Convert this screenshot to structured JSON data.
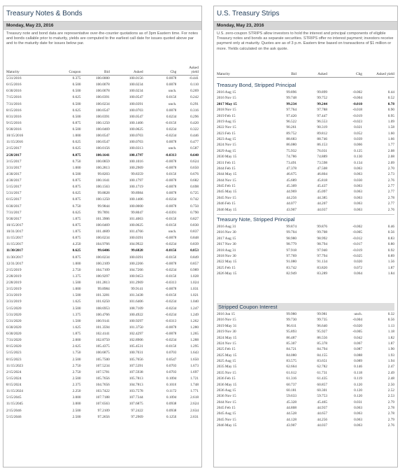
{
  "left": {
    "title": "Treasury Notes & Bonds",
    "date": "Monday, May 23, 2016",
    "description": "Treasury note and bond data are representative over-the-counter quotations as of 3pm Eastern time. For notes and bonds callable prior to maturity, yields are computed to the earliest call date for issues quoted above par and to the maturity date for issues below par.",
    "headers": {
      "maturity": "Maturity",
      "coupon": "Coupon",
      "bid": "Bid",
      "asked": "Asked",
      "chg": "Chg",
      "yield1": "Asked",
      "yield2": "yield"
    },
    "rows": [
      [
        "5/31/2016",
        "0.375",
        "100.0000",
        "100.0156",
        "0.0078",
        "-0.441"
      ],
      [
        "6/15/2016",
        "0.500",
        "100.0078",
        "100.0234",
        "0.0078",
        "0.110"
      ],
      [
        "6/30/2016",
        "0.500",
        "100.0078",
        "100.0234",
        "unch.",
        "0.269"
      ],
      [
        "7/15/2016",
        "0.625",
        "100.0391",
        "100.0547",
        "0.0156",
        "0.242"
      ],
      [
        "7/31/2016",
        "0.500",
        "100.0234",
        "100.0391",
        "unch.",
        "0.291"
      ],
      [
        "8/15/2016",
        "0.625",
        "100.0547",
        "100.0703",
        "0.0078",
        "0.316"
      ],
      [
        "8/31/2016",
        "0.500",
        "100.0391",
        "100.0547",
        "0.0234",
        "0.296"
      ],
      [
        "9/15/2016",
        "0.875",
        "100.1250",
        "100.1406",
        "-0.0156",
        "0.420"
      ],
      [
        "9/30/2016",
        "0.500",
        "100.0469",
        "100.0625",
        "0.0234",
        "0.322"
      ],
      [
        "10/15/2016",
        "1.000",
        "100.0547",
        "100.0703",
        "-0.0234",
        "0.446"
      ],
      [
        "11/15/2016",
        "0.625",
        "100.0547",
        "100.0703",
        "0.0078",
        "0.477"
      ],
      [
        "2/15/2017",
        "0.625",
        "100.0156",
        "100.0313",
        "unch.",
        "0.587"
      ],
      [
        "2/28/2017",
        "0.875",
        "100.1641",
        "100.1797",
        "-0.0313",
        "0.640"
      ],
      [
        "3/15/2017",
        "0.750",
        "100.0859",
        "100.1016",
        "-0.0078",
        "0.624"
      ],
      [
        "3/31/2017",
        "1.000",
        "100.2813",
        "100.2969",
        "-0.0078",
        "0.650"
      ],
      [
        "4/30/2017",
        "0.500",
        "99.8203",
        "99.8359",
        "0.0156",
        "0.676"
      ],
      [
        "4/30/2017",
        "0.875",
        "100.1641",
        "100.1797",
        "-0.0078",
        "0.682"
      ],
      [
        "5/15/2017",
        "0.875",
        "100.1563",
        "100.1719",
        "-0.0078",
        "0.698"
      ],
      [
        "5/31/2017",
        "0.625",
        "99.8828",
        "99.8984",
        "0.0078",
        "0.725"
      ],
      [
        "6/15/2017",
        "0.875",
        "100.1250",
        "100.1406",
        "-0.0234",
        "0.742"
      ],
      [
        "6/30/2017",
        "0.750",
        "99.9844",
        "100.0000",
        "-0.0078",
        "0.750"
      ],
      [
        "7/31/2017",
        "0.625",
        "99.7891",
        "99.8047",
        "-0.0391",
        "0.790"
      ],
      [
        "9/30/2017",
        "1.875",
        "101.3906",
        "101.4063",
        "-0.0156",
        "0.827"
      ],
      [
        "10/15/2017",
        "0.875",
        "100.0469",
        "100.0625",
        "-0.0156",
        "0.830"
      ],
      [
        "10/31/2017",
        "1.875",
        "101.4609",
        "101.4766",
        "unch.",
        "0.837"
      ],
      [
        "11/15/2017",
        "0.875",
        "100.0234",
        "100.0391",
        "-0.0078",
        "0.848"
      ],
      [
        "11/15/2017",
        "4.250",
        "104.9766",
        "104.9922",
        "-0.0234",
        "0.839"
      ],
      [
        "11/30/2017",
        "0.625",
        "99.6406",
        "99.6828",
        "-0.0156",
        "0.853"
      ],
      [
        "11/30/2017",
        "0.875",
        "100.0234",
        "100.0391",
        "-0.0156",
        "0.849"
      ],
      [
        "12/31/2017",
        "1.000",
        "100.2109",
        "100.2266",
        "-0.0078",
        "0.857"
      ],
      [
        "2/15/2019",
        "2.750",
        "104.7109",
        "104.7266",
        "-0.0234",
        "0.989"
      ],
      [
        "2/28/2019",
        "1.375",
        "100.9297",
        "100.9453",
        "-0.0156",
        "1.028"
      ],
      [
        "2/28/2019",
        "1.500",
        "101.2813",
        "101.2969",
        "-0.0313",
        "1.024"
      ],
      [
        "3/15/2019",
        "1.000",
        "99.8984",
        "99.9141",
        "-0.0078",
        "1.031"
      ],
      [
        "3/31/2019",
        "1.500",
        "101.3281",
        "101.3438",
        "-0.0156",
        "1.021"
      ],
      [
        "3/31/2019",
        "1.625",
        "101.6250",
        "101.6406",
        "-0.0234",
        "1.040"
      ],
      [
        "5/15/2020",
        "3.500",
        "108.6953",
        "108.7109",
        "-0.0234",
        "1.247"
      ],
      [
        "5/31/2020",
        "1.375",
        "100.4766",
        "100.4922",
        "-0.0234",
        "1.249"
      ],
      [
        "5/31/2020",
        "1.500",
        "100.9141",
        "100.9297",
        "-0.0313",
        "1.262"
      ],
      [
        "6/30/2020",
        "1.625",
        "101.3594",
        "101.3750",
        "-0.0078",
        "1.280"
      ],
      [
        "6/30/2020",
        "1.875",
        "102.4141",
        "102.4297",
        "-0.0078",
        "1.265"
      ],
      [
        "7/31/2020",
        "2.000",
        "102.8750",
        "102.8906",
        "-0.0234",
        "1.288"
      ],
      [
        "8/15/2020",
        "2.625",
        "105.4375",
        "105.4531",
        "-0.0156",
        "1.295"
      ],
      [
        "5/15/2023",
        "1.750",
        "100.6875",
        "100.7031",
        "0.0703",
        "1.643"
      ],
      [
        "8/15/2023",
        "2.500",
        "105.7500",
        "105.7656",
        "0.0547",
        "1.650"
      ],
      [
        "11/15/2023",
        "2.750",
        "107.5234",
        "107.5391",
        "0.0703",
        "1.673"
      ],
      [
        "2/15/2024",
        "2.750",
        "107.5781",
        "107.5938",
        "0.0703",
        "1.697"
      ],
      [
        "5/15/2024",
        "2.500",
        "105.7656",
        "105.7813",
        "0.1094",
        "1.721"
      ],
      [
        "8/15/2024",
        "2.375",
        "104.7656",
        "104.7813",
        "0.1016",
        "1.748"
      ],
      [
        "11/15/2024",
        "2.250",
        "103.7422",
        "103.7578",
        "0.1172",
        "1.771"
      ],
      [
        "5/15/2045",
        "3.000",
        "107.7188",
        "107.7344",
        "0.1094",
        "2.618"
      ],
      [
        "11/15/2045",
        "3.000",
        "107.6563",
        "107.6875",
        "0.0938",
        "2.624"
      ],
      [
        "2/15/2046",
        "2.500",
        "97.2109",
        "97.2422",
        "0.0938",
        "2.634"
      ],
      [
        "5/15/2046",
        "2.500",
        "97.2656",
        "97.2969",
        "0.1250",
        "2.631"
      ]
    ],
    "bold_rows": [
      12,
      27
    ]
  },
  "right": {
    "title": "U.S. Treasury Strips",
    "date": "Monday, May 23, 2016",
    "description": "U.S. zero-coupon STRIPS allow investors to hold the interest and principal components of eligible Treasury notes and bonds as separate securities. STRIPS offer no interest payment; investors receive payment only at maturity. Quotes are as of 3 p.m. Eastern time based on transactions of $1 million or more. Yields calculated on the ask quote.",
    "headers": {
      "maturity": "Maturity",
      "bid": "Bid",
      "asked": "Asked",
      "chg": "Chg",
      "yield": "Asked yield"
    },
    "sections": [
      {
        "title": "Treasury Bond, Stripped Principal",
        "rows": [
          [
            "2016 Aug 15",
            "99.896",
            "99.899",
            "-0.002",
            "0.44"
          ],
          [
            "2016 Nov 15",
            "99.748",
            "99.752",
            "-0.004",
            "0.52"
          ],
          [
            "2017 May 15",
            "99.234",
            "99.244",
            "-0.010",
            "0.78"
          ],
          [
            "2018 Nov 15",
            "97.764",
            "97.788",
            "-0.018",
            "0.90"
          ],
          [
            "2019 Feb 15",
            "97.420",
            "97.447",
            "-0.019",
            "0.95"
          ],
          [
            "2019 Aug 15",
            "96.522",
            "96.553",
            "-0.023",
            "1.09"
          ],
          [
            "2022 Nov 15",
            "90.261",
            "90.319",
            "0.021",
            "1.58"
          ],
          [
            "2023 Feb 15",
            "89.752",
            "89.812",
            "0.052",
            "1.60"
          ],
          [
            "2023 Aug 15",
            "88.683",
            "88.746",
            "0.039",
            "1.66"
          ],
          [
            "2024 Nov 15",
            "86.080",
            "86.153",
            "0.066",
            "1.77"
          ],
          [
            "2029 Aug 15",
            "75.932",
            "76.031",
            "0.125",
            "2.08"
          ],
          [
            "2030 May 15",
            "74.786",
            "74.889",
            "0.130",
            "2.08"
          ],
          [
            "2031 Feb 15",
            "73.491",
            "73.598",
            "0.134",
            "2.09"
          ],
          [
            "2044 Feb 15",
            "47.378",
            "47.508",
            "0.063",
            "2.70"
          ],
          [
            "2044 May 15",
            "46.675",
            "46.804",
            "0.063",
            "2.73"
          ],
          [
            "2044 Nov 15",
            "45.689",
            "45.818",
            "0.030",
            "2.76"
          ],
          [
            "2045 Feb 15",
            "45.309",
            "45.437",
            "0.063",
            "2.77"
          ],
          [
            "2045 May 15",
            "44.969",
            "45.097",
            "0.063",
            "2.77"
          ],
          [
            "2045 Nov 15",
            "44.256",
            "44.385",
            "0.063",
            "2.78"
          ],
          [
            "2046 Feb 15",
            "44.077",
            "44.207",
            "0.063",
            "2.77"
          ],
          [
            "2046 May 15",
            "43.907",
            "44.037",
            "0.063",
            "2.76"
          ]
        ],
        "bold_rows": [
          2
        ]
      },
      {
        "title": "Treasury Note, Stripped Principal",
        "rows": [
          [
            "2016 Aug 31",
            "99.874",
            "99.876",
            "-0.002",
            "0.46"
          ],
          [
            "2016 Nov 30",
            "99.704",
            "99.708",
            "-0.005",
            "0.56"
          ],
          [
            "2017 Aug 15",
            "98.980",
            "98.992",
            "-0.012",
            "0.83"
          ],
          [
            "2017 Nov 30",
            "98.779",
            "98.794",
            "-0.017",
            "0.80"
          ],
          [
            "2018 Aug 31",
            "97.918",
            "97.940",
            "-0.019",
            "0.92"
          ],
          [
            "2018 Nov 30",
            "97.769",
            "97.794",
            "-0.025",
            "0.89"
          ],
          [
            "2022 May 15",
            "91.080",
            "91.134",
            "0.020",
            "1.56"
          ],
          [
            "2025 Feb 15",
            "83.742",
            "83.820",
            "0.072",
            "1.87"
          ],
          [
            "2026 May 15",
            "82.949",
            "83.289",
            "0.064",
            "1.84"
          ]
        ],
        "bold_rows": []
      },
      {
        "title": "Stripped Coupon Interest",
        "rows": [
          [
            "2016 Jun 15",
            "99.980",
            "99.981",
            "unch.",
            "0.32"
          ],
          [
            "2016 Nov 15",
            "99.730",
            "99.735",
            "-0.004",
            "0.56"
          ],
          [
            "2019 May 31",
            "96.611",
            "96.640",
            "-0.020",
            "1.13"
          ],
          [
            "2019 Nov 30",
            "95.893",
            "95.927",
            "-0.005",
            "1.18"
          ],
          [
            "2024 May 15",
            "86.487",
            "86.556",
            "0.042",
            "1.82"
          ],
          [
            "2024 Nov 15",
            "85.307",
            "85.378",
            "0.067",
            "1.87"
          ],
          [
            "2025 Feb 15",
            "84.721",
            "84.794",
            "0.087",
            "1.90"
          ],
          [
            "2025 May 15",
            "84.080",
            "84.155",
            "0.088",
            "1.93"
          ],
          [
            "2025 Aug 15",
            "83.575",
            "83.651",
            "0.089",
            "1.94"
          ],
          [
            "2035 May 15",
            "62.664",
            "62.782",
            "0.146",
            "2.47"
          ],
          [
            "2035 Nov 15",
            "61.612",
            "61.731",
            "0.118",
            "2.49"
          ],
          [
            "2036 Feb 15",
            "61.316",
            "61.435",
            "0.119",
            "2.48"
          ],
          [
            "2036 May 15",
            "60.737",
            "60.857",
            "0.120",
            "2.50"
          ],
          [
            "2036 Aug 15",
            "60.181",
            "60.301",
            "0.120",
            "2.52"
          ],
          [
            "2036 Nov 15",
            "59.633",
            "59.753",
            "0.120",
            "2.53"
          ],
          [
            "2044 Nov 15",
            "45.328",
            "45.465",
            "0.031",
            "2.79"
          ],
          [
            "2045 Feb 15",
            "44.808",
            "44.937",
            "0.063",
            "2.78"
          ],
          [
            "2045 Aug 15",
            "44.528",
            "44.657",
            "0.063",
            "2.78"
          ],
          [
            "2045 Nov 15",
            "44.128",
            "44.256",
            "0.063",
            "2.79"
          ],
          [
            "2046 May 15",
            "43.907",
            "44.037",
            "0.063",
            "2.76"
          ]
        ],
        "bold_rows": []
      }
    ]
  }
}
